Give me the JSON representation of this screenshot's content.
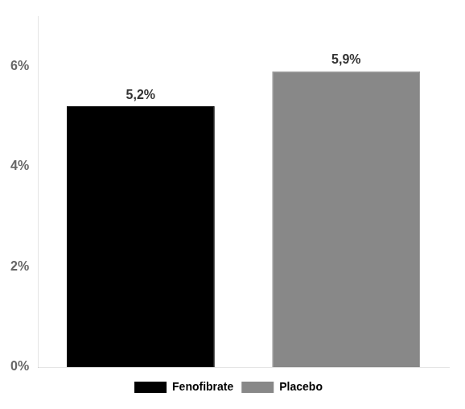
{
  "chart_data": {
    "type": "bar",
    "categories": [
      "Fenofibrate",
      "Placebo"
    ],
    "values": [
      5.2,
      5.9
    ],
    "value_labels": [
      "5,2%",
      "5,9%"
    ],
    "colors": [
      "#000000",
      "#888888"
    ],
    "ylim": [
      0,
      7
    ],
    "yticks": [
      {
        "value": 0,
        "label": "0%"
      },
      {
        "value": 2,
        "label": "2%"
      },
      {
        "value": 4,
        "label": "4%"
      },
      {
        "value": 6,
        "label": "6%"
      }
    ],
    "grid": false,
    "legend": "bottom",
    "data_labels": true,
    "tick_labels": "y"
  }
}
